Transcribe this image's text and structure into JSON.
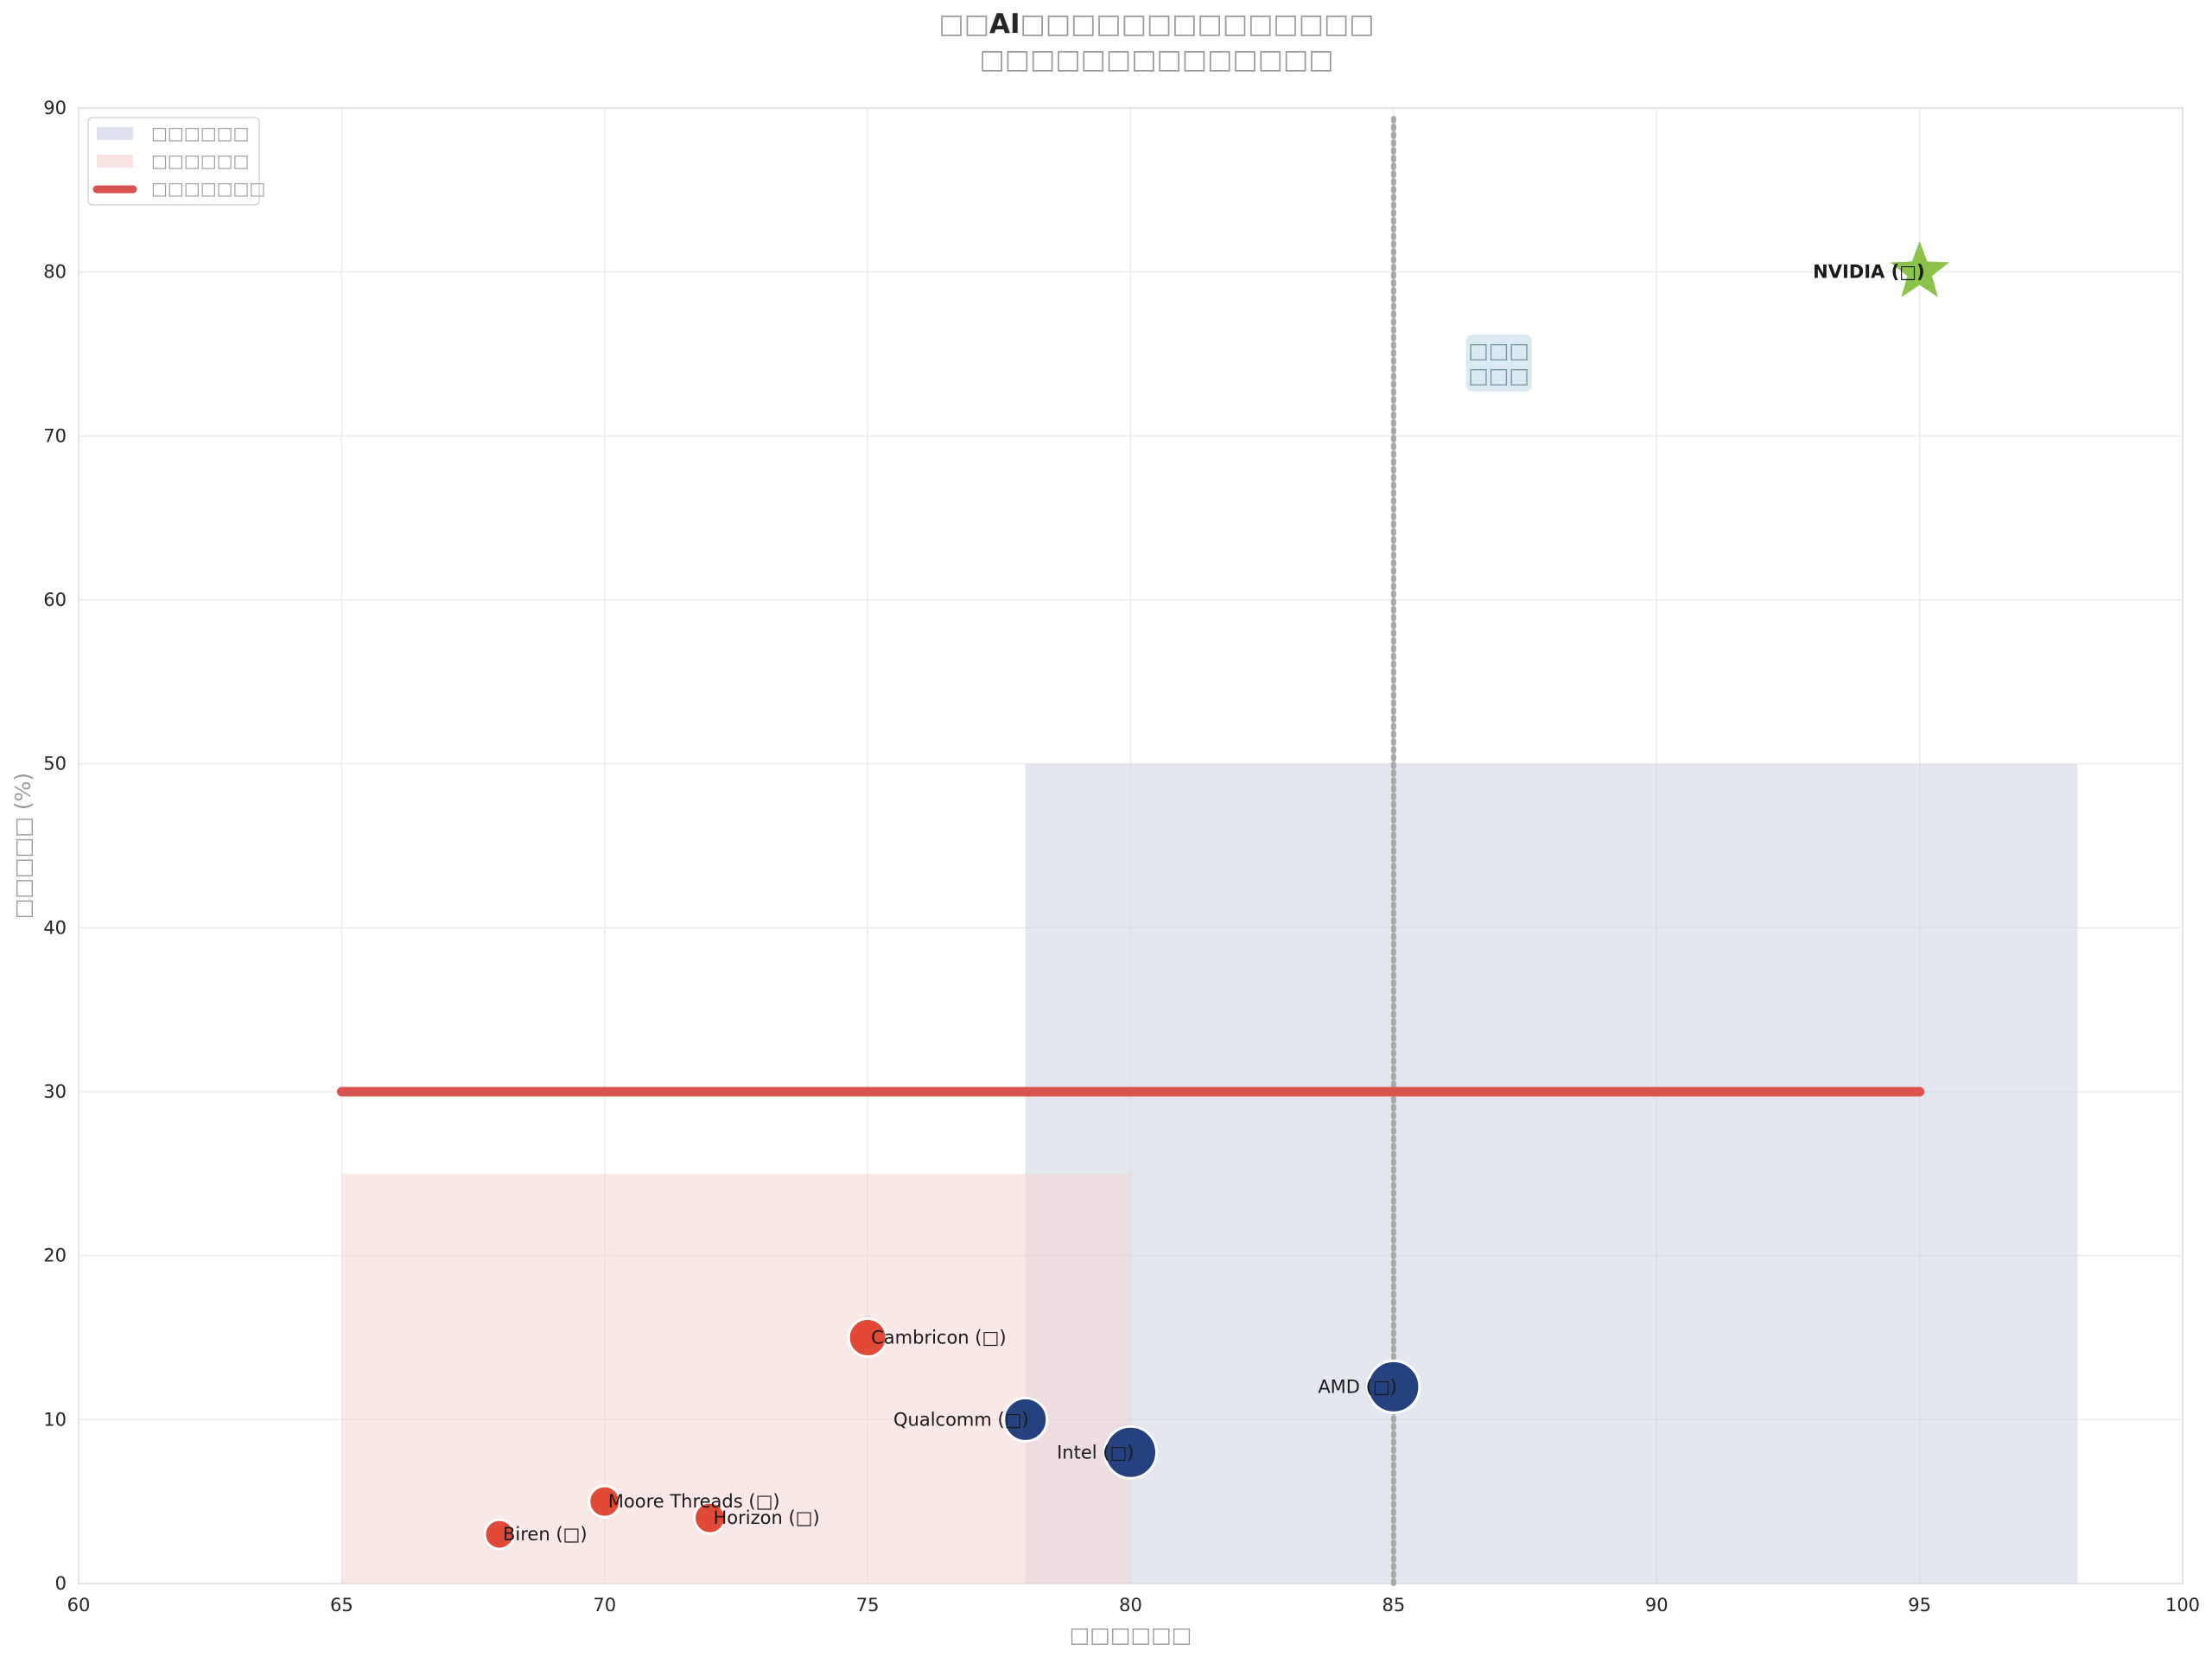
{
  "chart_data": {
    "type": "scatter",
    "title_lines": [
      "□□AI□□□□□□□□□□□□□□",
      "□□□□□□□□□□□□□□"
    ],
    "title_bold_fragment": "AI",
    "xlabel": "□□□□□□",
    "ylabel": "□□□□□ (%)",
    "xlim": [
      60,
      100
    ],
    "ylim": [
      0,
      90
    ],
    "xticks": [
      60,
      65,
      70,
      75,
      80,
      85,
      90,
      95,
      100
    ],
    "yticks": [
      0,
      10,
      20,
      30,
      40,
      50,
      60,
      70,
      80,
      90
    ],
    "grid": true,
    "legend_position": "top-left",
    "legend": [
      {
        "label": "□□□□□□",
        "kind": "patch",
        "color": "#c9cde2"
      },
      {
        "label": "□□□□□□",
        "kind": "patch",
        "color": "#f6d2d0"
      },
      {
        "label": "□□□□□□□",
        "kind": "line",
        "color": "#d9534f"
      }
    ],
    "regions": [
      {
        "x": [
          78,
          98
        ],
        "y": [
          0,
          50
        ],
        "color": "#c9cde2"
      },
      {
        "x": [
          65,
          80
        ],
        "y": [
          0,
          25
        ],
        "color": "#f6d2d0"
      }
    ],
    "hline": {
      "y": 30,
      "x": [
        65,
        95
      ],
      "color": "#d9534f"
    },
    "vline": {
      "x": 85,
      "color": "#a9a9a9"
    },
    "annotation": {
      "lines": [
        "□□□",
        "□□□"
      ],
      "x": 87,
      "y": 74.5
    },
    "points": [
      {
        "label": "NVIDIA (□)",
        "x": 95,
        "y": 80,
        "marker": "star",
        "color": "#8bc34a",
        "bold": true,
        "anchor": "end"
      },
      {
        "label": "AMD (□)",
        "x": 85,
        "y": 12,
        "marker": "circle",
        "size": 30,
        "color": "#26417f",
        "anchor": "end"
      },
      {
        "label": "Intel (□)",
        "x": 80,
        "y": 8,
        "marker": "circle",
        "size": 30,
        "color": "#26417f",
        "anchor": "end"
      },
      {
        "label": "Qualcomm (□)",
        "x": 78,
        "y": 10,
        "marker": "circle",
        "size": 25,
        "color": "#26417f",
        "anchor": "end"
      },
      {
        "label": "Cambricon (□)",
        "x": 75,
        "y": 15,
        "marker": "circle",
        "size": 22,
        "color": "#e04a37",
        "anchor": "start"
      },
      {
        "label": "Moore Threads (□)",
        "x": 70,
        "y": 5,
        "marker": "circle",
        "size": 18,
        "color": "#e04a37",
        "anchor": "start"
      },
      {
        "label": "Horizon (□)",
        "x": 72,
        "y": 4,
        "marker": "circle",
        "size": 18,
        "color": "#e04a37",
        "anchor": "start"
      },
      {
        "label": "Biren (□)",
        "x": 68,
        "y": 3,
        "marker": "circle",
        "size": 17,
        "color": "#e04a37",
        "anchor": "start"
      }
    ]
  }
}
